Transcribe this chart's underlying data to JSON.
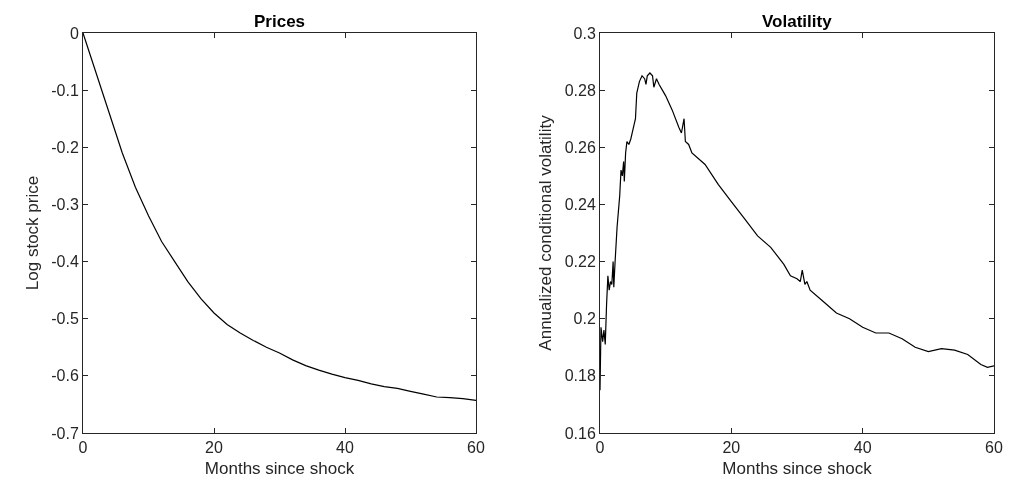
{
  "chart_data": [
    {
      "type": "line",
      "title": "Prices",
      "xlabel": "Months since shock",
      "ylabel": "Log stock price",
      "xlim": [
        0,
        60
      ],
      "xticks": [
        0,
        20,
        40,
        60
      ],
      "ylim": [
        -0.7,
        0
      ],
      "yticks": [
        -0.7,
        -0.6,
        -0.5,
        -0.4,
        -0.3,
        -0.2,
        -0.1,
        0
      ],
      "x": [
        0,
        1,
        2,
        3,
        4,
        5,
        6,
        8,
        10,
        12,
        14,
        16,
        18,
        20,
        22,
        24,
        26,
        28,
        30,
        32,
        34,
        36,
        38,
        40,
        42,
        44,
        46,
        48,
        50,
        52,
        54,
        56,
        58,
        60
      ],
      "series": [
        {
          "color": "#000000",
          "values": [
            0,
            -0.035,
            -0.07,
            -0.105,
            -0.14,
            -0.175,
            -0.21,
            -0.27,
            -0.32,
            -0.365,
            -0.4,
            -0.435,
            -0.465,
            -0.49,
            -0.51,
            -0.525,
            -0.538,
            -0.55,
            -0.56,
            -0.572,
            -0.582,
            -0.59,
            -0.597,
            -0.603,
            -0.608,
            -0.614,
            -0.619,
            -0.622,
            -0.627,
            -0.632,
            -0.637,
            -0.638,
            -0.64,
            -0.643
          ]
        }
      ]
    },
    {
      "type": "line",
      "title": "Volatility",
      "xlabel": "Months since shock",
      "ylabel": "Annualized conditional volatility",
      "xlim": [
        0,
        60
      ],
      "xticks": [
        0,
        20,
        40,
        60
      ],
      "ylim": [
        0.16,
        0.3
      ],
      "yticks": [
        0.16,
        0.18,
        0.2,
        0.22,
        0.24,
        0.26,
        0.28,
        0.3
      ],
      "x": [
        0,
        0.15,
        0.4,
        0.6,
        0.8,
        1.0,
        1.2,
        1.4,
        1.6,
        1.8,
        2.0,
        2.1,
        2.3,
        2.6,
        3.0,
        3.2,
        3.4,
        3.6,
        3.7,
        3.9,
        4.1,
        4.4,
        4.7,
        5.0,
        5.2,
        5.4,
        5.6,
        6.0,
        6.4,
        6.8,
        7.0,
        7.2,
        7.6,
        8.0,
        8.2,
        8.6,
        9.0,
        9.5,
        10,
        11,
        12,
        12.4,
        12.8,
        13.0,
        13.5,
        14,
        16,
        18,
        20,
        22,
        24,
        26,
        28,
        29,
        30,
        30.5,
        30.8,
        31.2,
        31.5,
        32,
        34,
        36,
        38,
        40,
        42,
        44,
        46,
        48,
        50,
        52,
        54,
        56,
        58,
        59,
        60
      ],
      "series": [
        {
          "color": "#000000",
          "values": [
            0.175,
            0.197,
            0.192,
            0.196,
            0.191,
            0.205,
            0.215,
            0.21,
            0.213,
            0.212,
            0.22,
            0.211,
            0.22,
            0.232,
            0.243,
            0.252,
            0.25,
            0.255,
            0.248,
            0.258,
            0.262,
            0.261,
            0.263,
            0.266,
            0.268,
            0.27,
            0.279,
            0.283,
            0.285,
            0.284,
            0.282,
            0.285,
            0.286,
            0.285,
            0.281,
            0.284,
            0.282,
            0.28,
            0.278,
            0.273,
            0.267,
            0.265,
            0.27,
            0.262,
            0.261,
            0.258,
            0.254,
            0.247,
            0.241,
            0.235,
            0.229,
            0.225,
            0.219,
            0.215,
            0.214,
            0.213,
            0.217,
            0.212,
            0.213,
            0.21,
            0.206,
            0.202,
            0.2,
            0.197,
            0.195,
            0.195,
            0.193,
            0.19,
            0.1885,
            0.1895,
            0.189,
            0.1875,
            0.184,
            0.183,
            0.1835
          ]
        }
      ]
    }
  ]
}
